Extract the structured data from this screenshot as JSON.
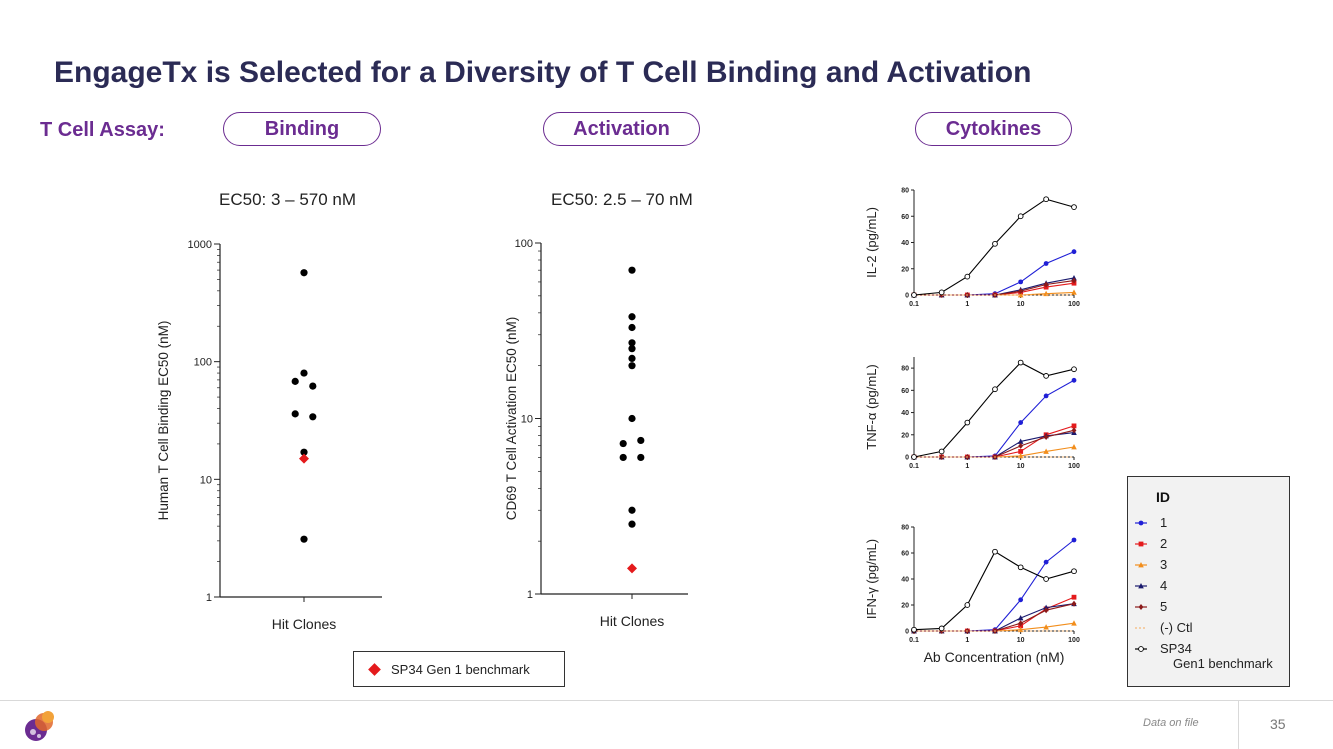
{
  "slide": {
    "title": "EngageTx is Selected for a Diversity of T Cell Binding and Activation",
    "assay_label": "T Cell Assay:",
    "pills": {
      "binding": "Binding",
      "activation": "Activation",
      "cytokines": "Cytokines"
    },
    "benchmark_legend": "SP34 Gen 1 benchmark",
    "footnote": "Data on file",
    "page_number": "35"
  },
  "colors": {
    "accent_purple": "#6b2c91",
    "title_navy": "#2b2b55",
    "benchmark_red": "#e41a1c"
  },
  "chart_data": [
    {
      "id": "binding",
      "type": "scatter",
      "subtitle": "EC50: 3 – 570 nM",
      "ylabel": "Human T Cell Binding EC50 (nM)",
      "xlabel": "Hit Clones",
      "yscale": "log",
      "ylim": [
        1,
        1000
      ],
      "yticks": [
        1,
        10,
        100,
        1000
      ],
      "ytick_labels": [
        "1",
        "10",
        "100",
        "1000"
      ],
      "points": [
        {
          "x": 0,
          "y": 570
        },
        {
          "x": 0,
          "y": 80
        },
        {
          "x": -0.4,
          "y": 68
        },
        {
          "x": 0.4,
          "y": 62
        },
        {
          "x": -0.4,
          "y": 36
        },
        {
          "x": 0.4,
          "y": 34
        },
        {
          "x": 0,
          "y": 17
        },
        {
          "x": 0,
          "y": 3.1
        }
      ],
      "benchmark": {
        "x": 0,
        "y": 15,
        "label": "SP34 Gen 1 benchmark"
      }
    },
    {
      "id": "activation",
      "type": "scatter",
      "subtitle": "EC50: 2.5 – 70 nM",
      "ylabel": "CD69 T Cell Activation EC50 (nM)",
      "xlabel": "Hit Clones",
      "yscale": "log",
      "ylim": [
        1,
        100
      ],
      "yticks": [
        1,
        10,
        100
      ],
      "ytick_labels": [
        "1",
        "10",
        "100"
      ],
      "points": [
        {
          "x": 0,
          "y": 70
        },
        {
          "x": 0,
          "y": 38
        },
        {
          "x": 0,
          "y": 33
        },
        {
          "x": 0,
          "y": 27
        },
        {
          "x": 0,
          "y": 25
        },
        {
          "x": 0,
          "y": 22
        },
        {
          "x": 0,
          "y": 20
        },
        {
          "x": 0,
          "y": 10
        },
        {
          "x": -0.4,
          "y": 7.2
        },
        {
          "x": 0.4,
          "y": 7.5
        },
        {
          "x": -0.4,
          "y": 6
        },
        {
          "x": 0.4,
          "y": 6
        },
        {
          "x": 0,
          "y": 3
        },
        {
          "x": 0,
          "y": 2.5
        }
      ],
      "benchmark": {
        "x": 0,
        "y": 1.4,
        "label": "SP34 Gen 1 benchmark"
      }
    },
    {
      "id": "il2",
      "type": "line",
      "ylabel": "IL-2 (pg/mL)",
      "xscale": "log",
      "xlim": [
        0.1,
        100
      ],
      "xticks": [
        0.1,
        1,
        10,
        100
      ],
      "xtick_labels": [
        "0.1",
        "1",
        "10",
        "100"
      ],
      "ylim": [
        0,
        80
      ],
      "yticks": [
        0,
        20,
        40,
        60,
        80
      ],
      "x": [
        0.1,
        0.33,
        1,
        3.3,
        10,
        30,
        100
      ],
      "series": [
        {
          "name": "1",
          "values": [
            0,
            0,
            0,
            1,
            10,
            24,
            33
          ]
        },
        {
          "name": "2",
          "values": [
            0,
            0,
            0,
            0,
            2,
            6,
            9
          ]
        },
        {
          "name": "3",
          "values": [
            0,
            0,
            0,
            0,
            0,
            1,
            2
          ]
        },
        {
          "name": "4",
          "values": [
            0,
            0,
            0,
            0,
            4,
            9,
            13
          ]
        },
        {
          "name": "5",
          "values": [
            0,
            0,
            0,
            0,
            3,
            8,
            11
          ]
        },
        {
          "name": "(-) Ctl",
          "values": [
            0,
            0,
            0,
            0,
            0,
            0,
            0
          ]
        },
        {
          "name": "SP34 Gen1 benchmark",
          "values": [
            0,
            2,
            14,
            39,
            60,
            73,
            67
          ]
        }
      ]
    },
    {
      "id": "tnfa",
      "type": "line",
      "ylabel": "TNF-α (pg/mL)",
      "xscale": "log",
      "xlim": [
        0.1,
        100
      ],
      "xticks": [
        0.1,
        1,
        10,
        100
      ],
      "xtick_labels": [
        "0.1",
        "1",
        "10",
        "100"
      ],
      "ylim": [
        0,
        90
      ],
      "yticks": [
        0,
        20,
        40,
        60,
        80
      ],
      "x": [
        0.1,
        0.33,
        1,
        3.3,
        10,
        30,
        100
      ],
      "series": [
        {
          "name": "1",
          "values": [
            0,
            0,
            0,
            1,
            31,
            55,
            69
          ]
        },
        {
          "name": "2",
          "values": [
            0,
            0,
            0,
            0,
            5,
            20,
            28
          ]
        },
        {
          "name": "3",
          "values": [
            0,
            0,
            0,
            0,
            1,
            5,
            9
          ]
        },
        {
          "name": "4",
          "values": [
            0,
            0,
            0,
            0,
            14,
            19,
            22
          ]
        },
        {
          "name": "5",
          "values": [
            0,
            0,
            0,
            0,
            10,
            18,
            24
          ]
        },
        {
          "name": "(-) Ctl",
          "values": [
            0,
            0,
            0,
            0,
            0,
            0,
            0
          ]
        },
        {
          "name": "SP34 Gen1 benchmark",
          "values": [
            0,
            5,
            31,
            61,
            85,
            73,
            79
          ]
        }
      ]
    },
    {
      "id": "ifng",
      "type": "line",
      "ylabel": "IFN-γ (pg/mL)",
      "xlabel": "Ab Concentration (nM)",
      "xscale": "log",
      "xlim": [
        0.1,
        100
      ],
      "xticks": [
        0.1,
        1,
        10,
        100
      ],
      "xtick_labels": [
        "0.1",
        "1",
        "10",
        "100"
      ],
      "ylim": [
        0,
        80
      ],
      "yticks": [
        0,
        20,
        40,
        60,
        80
      ],
      "x": [
        0.1,
        0.33,
        1,
        3.3,
        10,
        30,
        100
      ],
      "series": [
        {
          "name": "1",
          "values": [
            0,
            0,
            0,
            1,
            24,
            53,
            70
          ]
        },
        {
          "name": "2",
          "values": [
            0,
            0,
            0,
            0,
            4,
            17,
            26
          ]
        },
        {
          "name": "3",
          "values": [
            0,
            0,
            0,
            0,
            1,
            3,
            6
          ]
        },
        {
          "name": "4",
          "values": [
            0,
            0,
            0,
            0,
            10,
            18,
            21
          ]
        },
        {
          "name": "5",
          "values": [
            0,
            0,
            0,
            0,
            6,
            16,
            21
          ]
        },
        {
          "name": "(-) Ctl",
          "values": [
            0,
            0,
            0,
            0,
            0,
            0,
            0
          ]
        },
        {
          "name": "SP34 Gen1 benchmark",
          "values": [
            1,
            2,
            20,
            61,
            49,
            40,
            46
          ]
        }
      ]
    }
  ],
  "cytokine_legend": {
    "title": "ID",
    "entries": [
      {
        "name": "1",
        "color": "#1f1fd6",
        "marker": "circle"
      },
      {
        "name": "2",
        "color": "#e41a1c",
        "marker": "square"
      },
      {
        "name": "3",
        "color": "#f28e1c",
        "marker": "triangle"
      },
      {
        "name": "4",
        "color": "#1a1a6e",
        "marker": "triangle"
      },
      {
        "name": "5",
        "color": "#8b1a1a",
        "marker": "diamond"
      },
      {
        "name": "(-) Ctl",
        "color": "#f5b87a",
        "marker": "none"
      },
      {
        "name": "SP34\nGen1 benchmark",
        "color": "#000000",
        "marker": "open-circle"
      }
    ]
  }
}
